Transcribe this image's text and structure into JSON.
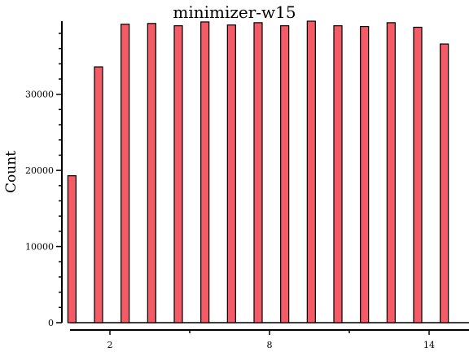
{
  "chart_data": {
    "type": "bar",
    "title": "minimizer-w15",
    "xlabel": "",
    "ylabel": "Count",
    "x": [
      1,
      2,
      3,
      4,
      5,
      6,
      7,
      8,
      9,
      10,
      11,
      12,
      13,
      14,
      15
    ],
    "values": [
      19300,
      33600,
      39200,
      39300,
      39000,
      39500,
      39100,
      39400,
      39000,
      39600,
      39000,
      38900,
      39400,
      38800,
      36600
    ],
    "xlim": [
      0.5,
      15.5
    ],
    "ylim": [
      0,
      39600
    ],
    "xticks": [
      2,
      8,
      14
    ],
    "xticks_minor": [
      5,
      11
    ],
    "yticks": [
      0,
      10000,
      20000,
      30000
    ],
    "ytick_labels": [
      "0",
      "10000",
      "20000",
      "30000"
    ],
    "grid": false,
    "legend": "none",
    "colors": {
      "bar_fill": "#f35b66",
      "bar_edge": "#000000"
    }
  }
}
